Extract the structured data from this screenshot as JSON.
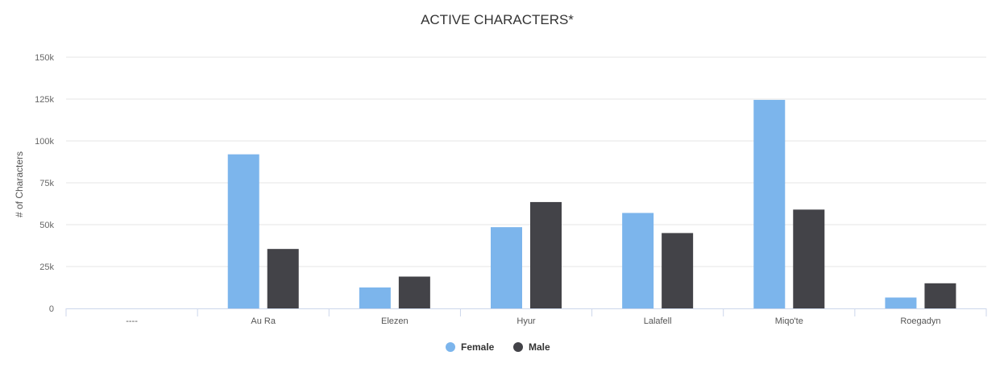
{
  "chart_data": {
    "type": "bar",
    "title": "ACTIVE CHARACTERS*",
    "xlabel": "",
    "ylabel": "# of Characters",
    "categories": [
      "----",
      "Au Ra",
      "Elezen",
      "Hyur",
      "Lalafell",
      "Miqo'te",
      "Roegadyn"
    ],
    "series": [
      {
        "name": "Female",
        "color": "#7cb5ec",
        "values": [
          0,
          92000,
          12500,
          48500,
          57000,
          124500,
          6500
        ]
      },
      {
        "name": "Male",
        "color": "#434348",
        "values": [
          0,
          35500,
          19000,
          63500,
          45000,
          59000,
          15000
        ]
      }
    ],
    "ylim": [
      0,
      150000
    ],
    "yticks": [
      0,
      25000,
      50000,
      75000,
      100000,
      125000,
      150000
    ],
    "ytick_labels": [
      "0",
      "25k",
      "50k",
      "75k",
      "100k",
      "125k",
      "150k"
    ],
    "grid": true,
    "legend_position": "bottom-center"
  }
}
